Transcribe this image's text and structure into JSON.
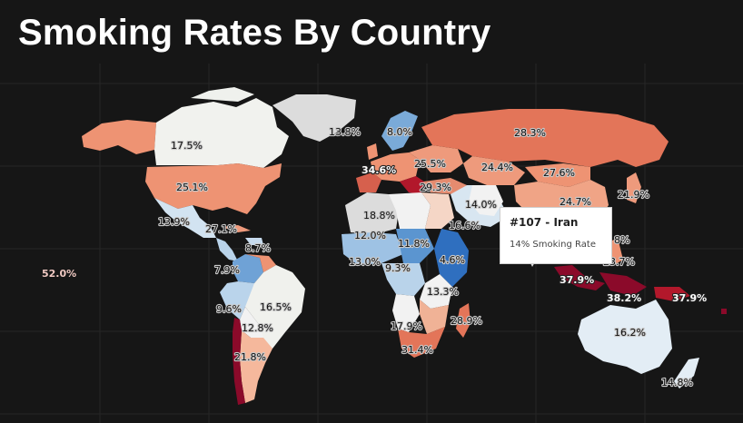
{
  "title": "Smoking Rates By Country",
  "colors": {
    "background": "#161616",
    "grid": "#262626",
    "no_data": "#dcdcdc",
    "low": "#2f6fbf",
    "mid": "#f2f2f2",
    "high": "#8b0a2a"
  },
  "tooltip": {
    "title": "#107 - Iran",
    "body": "14% Smoking Rate"
  },
  "labels": {
    "canada": "17.5%",
    "greenland": "13.8%",
    "scandinavia": "8.0%",
    "russia": "28.3%",
    "usa": "25.1%",
    "ukraine": "25.5%",
    "spain": "34.6%",
    "kazakhstan": "24.4%",
    "mongolia": "27.6%",
    "turkey": "29.3%",
    "china": "24.7%",
    "japan": "21.9%",
    "mexico": "13.9%",
    "cuba": "27.1%",
    "caribbean": "8.7%",
    "libya": "18.8%",
    "egypt": "16.6%",
    "iran": "14.0%",
    "west_africa": "12.0%",
    "chad": "11.8%",
    "east_africa": "4.6%",
    "sierra_leone": "13.0%",
    "central_africa": "9.3%",
    "colombia": "7.9%",
    "brazil": "16.5%",
    "peru": "9.6%",
    "bolivia": "12.8%",
    "tanzania": "13.3%",
    "philippines": "23.7%",
    "vietnam": "8%",
    "angola": "17.9%",
    "madagascar": "28.9%",
    "south_africa": "31.4%",
    "chile_arg": "21.8%",
    "indonesia_w": "37.9%",
    "indonesia_c": "38.2%",
    "papua": "37.9%",
    "australia": "16.2%",
    "new_zealand": "14.8%",
    "pacific": "52.0%"
  }
}
